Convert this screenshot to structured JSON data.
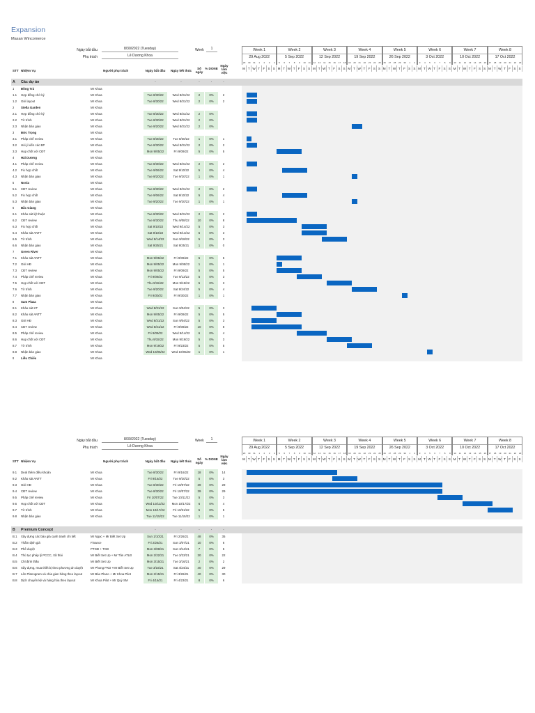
{
  "doc": {
    "title": "Expansion",
    "subtitle": "Masan Wincomerce"
  },
  "colors": {
    "bar": "#0a66c2",
    "shade": "#dcefdc",
    "header_bg": "#d9d9d9",
    "title": "#5b7fb4"
  },
  "meta": {
    "start_label": "Ngày bắt đầu",
    "start_value": "8/30/2022 (Tuesday)",
    "owner_label": "Phụ trách",
    "owner_value": "Lê Dương Khoa",
    "week_label": "Week",
    "week_value": "1"
  },
  "weeks": [
    {
      "label": "Week 1",
      "date": "29 Aug 2022"
    },
    {
      "label": "Week 2",
      "date": "5 Sep 2022"
    },
    {
      "label": "Week 3",
      "date": "12 Sep 2022"
    },
    {
      "label": "Week 4",
      "date": "19 Sep 2022"
    },
    {
      "label": "Week 5",
      "date": "26 Sep 2022"
    },
    {
      "label": "Week 6",
      "date": "3 Oct 2022"
    },
    {
      "label": "Week 7",
      "date": "10 Oct 2022"
    },
    {
      "label": "Week 8",
      "date": "17 Oct 2022"
    }
  ],
  "day_letters": [
    "M",
    "T",
    "W",
    "T",
    "F",
    "S",
    "S"
  ],
  "day_numbers": [
    "29",
    "30",
    "31",
    "1",
    "2",
    "3",
    "4",
    "5",
    "6",
    "7",
    "8",
    "9",
    "10",
    "11",
    "12",
    "13",
    "14",
    "15",
    "16",
    "17",
    "18",
    "19",
    "20",
    "21",
    "22",
    "23",
    "24",
    "25",
    "26",
    "27",
    "28",
    "29",
    "30",
    "1",
    "2",
    "3",
    "4",
    "5",
    "6",
    "7",
    "8",
    "9",
    "10",
    "11",
    "12",
    "13",
    "14",
    "15",
    "16",
    "17",
    "18",
    "19",
    "20",
    "21",
    "22",
    "23"
  ],
  "columns": {
    "stt": "STT",
    "task": "Nhiệm Vụ",
    "owner": "Người phụ trách",
    "start": "Ngày bắt đầu",
    "end": "Ngày kết thúc",
    "days": "Số ngày",
    "done": "% DONE",
    "workdays": "Ngày làm việc"
  },
  "page1_rows": [
    {
      "type": "section",
      "stt": "A",
      "task": "Các dự án",
      "start": "-",
      "end": "-",
      "days": "-",
      "done": "-",
      "workdays": "-"
    },
    {
      "type": "group",
      "stt": "1",
      "task": "Đồng Trà",
      "owner": "Mr Khoa"
    },
    {
      "type": "task",
      "stt": "1.1",
      "task": "Hợp đồng chờ ký",
      "owner": "Mr Khoa",
      "start": "Tue 8/30/22",
      "end": "Wed 8/31/22",
      "days": "2",
      "done": "0%",
      "workdays": "2",
      "bar": [
        1,
        2
      ]
    },
    {
      "type": "task",
      "stt": "1.2",
      "task": "Gửi layout",
      "owner": "Mr Khoa",
      "start": "Tue 8/30/22",
      "end": "Wed 8/31/22",
      "days": "2",
      "done": "0%",
      "workdays": "2",
      "bar": [
        1,
        2
      ]
    },
    {
      "type": "group",
      "stt": "2",
      "task": "Stella Garden",
      "owner": "Mr Khoa"
    },
    {
      "type": "task",
      "stt": "2.1",
      "task": "Hợp đồng chờ ký",
      "owner": "Mr Khoa",
      "start": "Tue 8/30/22",
      "end": "Wed 8/31/22",
      "days": "2",
      "done": "0%",
      "workdays": "",
      "bar": [
        1,
        2
      ]
    },
    {
      "type": "task",
      "stt": "2.2",
      "task": "Tờ trình",
      "owner": "Mr Khoa",
      "start": "Tue 8/30/22",
      "end": "Wed 8/31/22",
      "days": "2",
      "done": "0%",
      "workdays": "",
      "bar": [
        1,
        2
      ]
    },
    {
      "type": "task",
      "stt": "2.3",
      "task": "Nhận bàn giao",
      "owner": "Mr Khoa",
      "start": "Tue 9/20/22",
      "end": "Wed 8/31/22",
      "days": "2",
      "done": "0%",
      "workdays": "",
      "bar": [
        22,
        2
      ]
    },
    {
      "type": "group",
      "stt": "3",
      "task": "Đức Trọng",
      "owner": "Mr Khoa"
    },
    {
      "type": "task",
      "stt": "3.1",
      "task": "Pháp chế review",
      "owner": "Mr Khoa",
      "start": "Tue 8/30/22",
      "end": "Tue 8/30/22",
      "days": "1",
      "done": "0%",
      "workdays": "1",
      "bar": [
        1,
        1
      ]
    },
    {
      "type": "task",
      "stt": "3.2",
      "task": "Hỏi ý kiến các BP",
      "owner": "Mr Khoa",
      "start": "Tue 8/30/22",
      "end": "Wed 8/31/22",
      "days": "2",
      "done": "0%",
      "workdays": "2",
      "bar": [
        1,
        2
      ]
    },
    {
      "type": "task",
      "stt": "3.3",
      "task": "Họp chốt với CĐT",
      "owner": "Mr Khoa",
      "start": "Mon 9/05/22",
      "end": "Fri 9/09/22",
      "days": "5",
      "done": "0%",
      "workdays": "5",
      "bar": [
        7,
        5
      ]
    },
    {
      "type": "group",
      "stt": "4",
      "task": "Hải Dương",
      "owner": "Mr Khoa"
    },
    {
      "type": "task",
      "stt": "4.1",
      "task": "Pháp chế review",
      "owner": "Mr Khoa",
      "start": "Tue 8/30/22",
      "end": "Wed 8/31/22",
      "days": "2",
      "done": "0%",
      "workdays": "2",
      "bar": [
        1,
        2
      ]
    },
    {
      "type": "task",
      "stt": "4.2",
      "task": "Fix hợp chốt",
      "owner": "Mr Khoa",
      "start": "Tue 9/06/22",
      "end": "Sat 9/10/22",
      "days": "5",
      "done": "0%",
      "workdays": "4",
      "bar": [
        8,
        5
      ]
    },
    {
      "type": "task",
      "stt": "4.3",
      "task": "Nhận bàn giao",
      "owner": "Mr Khoa",
      "start": "Tue 9/20/22",
      "end": "Tue 9/20/22",
      "days": "1",
      "done": "0%",
      "workdays": "1",
      "bar": [
        22,
        1
      ]
    },
    {
      "type": "group",
      "stt": "5",
      "task": "Novia",
      "owner": "Mr Khoa"
    },
    {
      "type": "task",
      "stt": "5.1",
      "task": "CĐT review",
      "owner": "Mr Khoa",
      "start": "Tue 8/30/22",
      "end": "Wed 8/31/22",
      "days": "2",
      "done": "0%",
      "workdays": "2",
      "bar": [
        1,
        2
      ]
    },
    {
      "type": "task",
      "stt": "5.2",
      "task": "Fix hợp chốt",
      "owner": "Mr Khoa",
      "start": "Tue 9/06/22",
      "end": "Sat 9/10/22",
      "days": "5",
      "done": "0%",
      "workdays": "4",
      "bar": [
        8,
        5
      ]
    },
    {
      "type": "task",
      "stt": "5.3",
      "task": "Nhận bàn giao",
      "owner": "Mr Khoa",
      "start": "Tue 9/20/22",
      "end": "Tue 9/20/22",
      "days": "1",
      "done": "0%",
      "workdays": "1",
      "bar": [
        22,
        1
      ]
    },
    {
      "type": "group",
      "stt": "6",
      "task": "Bắc Giang",
      "owner": "Mr Khoa"
    },
    {
      "type": "task",
      "stt": "6.1",
      "task": "Khảo sát kỹ thuật",
      "owner": "Mr Khoa",
      "start": "Tue 8/30/22",
      "end": "Wed 8/31/22",
      "days": "2",
      "done": "0%",
      "workdays": "2",
      "bar": [
        1,
        2
      ]
    },
    {
      "type": "task",
      "stt": "6.2",
      "task": "CĐT review",
      "owner": "Mr Khoa",
      "start": "Tue 8/30/22",
      "end": "Thu 9/08/22",
      "days": "10",
      "done": "0%",
      "workdays": "8",
      "bar": [
        1,
        10
      ]
    },
    {
      "type": "task",
      "stt": "6.3",
      "task": "Fix hợp chốt",
      "owner": "Mr Khoa",
      "start": "Sat 9/10/22",
      "end": "Wed 9/14/22",
      "days": "5",
      "done": "0%",
      "workdays": "3",
      "bar": [
        12,
        5
      ]
    },
    {
      "type": "task",
      "stt": "6.4",
      "task": "Khảo sát ANTT",
      "owner": "Mr Khoa",
      "start": "Sat 9/10/22",
      "end": "Wed 9/14/22",
      "days": "5",
      "done": "0%",
      "workdays": "3",
      "bar": [
        12,
        5
      ]
    },
    {
      "type": "task",
      "stt": "6.5",
      "task": "Tờ trình",
      "owner": "Mr Khoa",
      "start": "Wed 9/14/22",
      "end": "Sun 9/18/22",
      "days": "5",
      "done": "0%",
      "workdays": "3",
      "bar": [
        16,
        5
      ]
    },
    {
      "type": "task",
      "stt": "6.6",
      "task": "Nhận bàn giao",
      "owner": "Mr Khoa",
      "start": "Sat 9/25/21",
      "end": "Sat 9/25/21",
      "days": "1",
      "done": "0%",
      "workdays": "0"
    },
    {
      "type": "group",
      "stt": "7",
      "task": "Green River",
      "owner": "Mr Khoa"
    },
    {
      "type": "task",
      "stt": "7.1",
      "task": "Khảo sát ANTT",
      "owner": "Mr Khoa",
      "start": "Mon 9/05/22",
      "end": "Fri 9/09/22",
      "days": "5",
      "done": "0%",
      "workdays": "5",
      "bar": [
        7,
        5
      ]
    },
    {
      "type": "task",
      "stt": "7.2",
      "task": "Gửi HĐ",
      "owner": "Mr Khoa",
      "start": "Mon 9/05/22",
      "end": "Mon 9/05/22",
      "days": "1",
      "done": "0%",
      "workdays": "1",
      "bar": [
        7,
        1
      ]
    },
    {
      "type": "task",
      "stt": "7.3",
      "task": "CĐT review",
      "owner": "Mr Khoa",
      "start": "Mon 9/05/22",
      "end": "Fri 9/09/22",
      "days": "5",
      "done": "0%",
      "workdays": "5",
      "bar": [
        7,
        5
      ]
    },
    {
      "type": "task",
      "stt": "7.4",
      "task": "Pháp chế review",
      "owner": "Mr Khoa",
      "start": "Fri 9/09/22",
      "end": "Tue 9/13/22",
      "days": "5",
      "done": "0%",
      "workdays": "3",
      "bar": [
        11,
        5
      ]
    },
    {
      "type": "task",
      "stt": "7.5",
      "task": "Họp chốt với CĐT",
      "owner": "Mr Khoa",
      "start": "Thu 9/15/22",
      "end": "Mon 9/19/22",
      "days": "5",
      "done": "0%",
      "workdays": "3",
      "bar": [
        17,
        5
      ]
    },
    {
      "type": "task",
      "stt": "7.6",
      "task": "Tờ trình",
      "owner": "Mr Khoa",
      "start": "Tue 9/20/22",
      "end": "Sat 9/24/22",
      "days": "5",
      "done": "0%",
      "workdays": "4",
      "bar": [
        22,
        5
      ]
    },
    {
      "type": "task",
      "stt": "7.7",
      "task": "Nhận bàn giao",
      "owner": "Mr Khoa",
      "start": "Fri 9/30/22",
      "end": "Fri 9/30/22",
      "days": "1",
      "done": "0%",
      "workdays": "1",
      "bar": [
        32,
        1
      ]
    },
    {
      "type": "group",
      "stt": "8",
      "task": "Sam Plaza",
      "owner": "Mr Khoa"
    },
    {
      "type": "task",
      "stt": "8.1",
      "task": "Khảo sát KT",
      "owner": "Mr Khoa",
      "start": "Wed 8/31/22",
      "end": "Sun 9/04/22",
      "days": "5",
      "done": "0%",
      "workdays": "3",
      "bar": [
        2,
        5
      ]
    },
    {
      "type": "task",
      "stt": "8.2",
      "task": "Khảo sát ANTT",
      "owner": "Mr Khoa",
      "start": "Mon 9/05/22",
      "end": "Fri 9/09/22",
      "days": "5",
      "done": "0%",
      "workdays": "5",
      "bar": [
        7,
        5
      ]
    },
    {
      "type": "task",
      "stt": "8.3",
      "task": "Gửi HĐ",
      "owner": "Mr Khoa",
      "start": "Wed 8/31/22",
      "end": "Sun 9/04/22",
      "days": "5",
      "done": "0%",
      "workdays": "3",
      "bar": [
        2,
        5
      ]
    },
    {
      "type": "task",
      "stt": "8.4",
      "task": "CĐT review",
      "owner": "Mr Khoa",
      "start": "Wed 8/31/22",
      "end": "Fri 9/09/22",
      "days": "10",
      "done": "0%",
      "workdays": "8",
      "bar": [
        2,
        10
      ]
    },
    {
      "type": "task",
      "stt": "8.5",
      "task": "Pháp chế review",
      "owner": "Mr Khoa",
      "start": "Fri 9/09/22",
      "end": "Wed 9/14/22",
      "days": "6",
      "done": "0%",
      "workdays": "4",
      "bar": [
        11,
        6
      ]
    },
    {
      "type": "task",
      "stt": "8.6",
      "task": "Họp chốt với CĐT",
      "owner": "Mr Khoa",
      "start": "Thu 9/15/22",
      "end": "Mon 9/19/22",
      "days": "5",
      "done": "0%",
      "workdays": "3",
      "bar": [
        17,
        5
      ]
    },
    {
      "type": "task",
      "stt": "8.7",
      "task": "Tờ trình",
      "owner": "Mr Khoa",
      "start": "Mon 9/19/22",
      "end": "Fri 9/23/22",
      "days": "5",
      "done": "0%",
      "workdays": "5",
      "bar": [
        21,
        5
      ]
    },
    {
      "type": "task",
      "stt": "8.8",
      "task": "Nhận bàn giao",
      "owner": "Mr Khoa",
      "start": "Wed 10/05/22",
      "end": "Wed 10/05/22",
      "days": "1",
      "done": "0%",
      "workdays": "1",
      "bar": [
        37,
        1
      ]
    },
    {
      "type": "group",
      "stt": "9",
      "task": "Liễu Chiểu",
      "owner": "Mr Khoa"
    }
  ],
  "page2_rows": [
    {
      "type": "task",
      "stt": "9.1",
      "task": "Deal thêm điều khoản",
      "owner": "Mr Khoa",
      "start": "Tue 8/30/22",
      "end": "Fri 9/16/22",
      "days": "18",
      "done": "0%",
      "workdays": "14",
      "bar": [
        1,
        18
      ]
    },
    {
      "type": "task",
      "stt": "9.2",
      "task": "Khảo sát ANTT",
      "owner": "Mr Khoa",
      "start": "Fri 9/16/22",
      "end": "Tue 9/20/22",
      "days": "5",
      "done": "0%",
      "workdays": "3",
      "bar": [
        18,
        5
      ]
    },
    {
      "type": "task",
      "stt": "9.3",
      "task": "Gửi HĐ",
      "owner": "Mr Khoa",
      "start": "Tue 8/30/22",
      "end": "Fri 10/07/22",
      "days": "39",
      "done": "0%",
      "workdays": "29",
      "bar": [
        1,
        39
      ]
    },
    {
      "type": "task",
      "stt": "9.4",
      "task": "CĐT review",
      "owner": "Mr Khoa",
      "start": "Tue 8/30/22",
      "end": "Fri 10/07/22",
      "days": "39",
      "done": "0%",
      "workdays": "29",
      "bar": [
        1,
        39
      ]
    },
    {
      "type": "task",
      "stt": "9.5",
      "task": "Pháp chế review",
      "owner": "Mr Khoa",
      "start": "Fri 10/07/22",
      "end": "Tue 10/11/22",
      "days": "5",
      "done": "0%",
      "workdays": "3",
      "bar": [
        39,
        5
      ]
    },
    {
      "type": "task",
      "stt": "9.6",
      "task": "Họp chốt với CĐT",
      "owner": "Mr Khoa",
      "start": "Wed 10/12/22",
      "end": "Mon 10/17/22",
      "days": "6",
      "done": "0%",
      "workdays": "4",
      "bar": [
        44,
        6
      ]
    },
    {
      "type": "task",
      "stt": "9.7",
      "task": "Tờ trình",
      "owner": "Mr Khoa",
      "start": "Mon 10/17/22",
      "end": "Fri 10/21/22",
      "days": "5",
      "done": "0%",
      "workdays": "5",
      "bar": [
        49,
        5
      ]
    },
    {
      "type": "task",
      "stt": "9.8",
      "task": "Nhận bàn giao",
      "owner": "Mr Khoa",
      "start": "Tue 11/15/22",
      "end": "Tue 11/15/22",
      "days": "1",
      "done": "0%",
      "workdays": "1"
    },
    {
      "type": "spacer"
    },
    {
      "type": "section",
      "stt": "B",
      "task": "Premium Concept",
      "start": "-",
      "end": "-",
      "days": "-",
      "done": "-",
      "workdays": "-"
    },
    {
      "type": "task",
      "stt": "B.1",
      "task": "Xây dựng các báo giá cạnh tranh chi tiết",
      "owner": "Mr Ngọc + Mr Biết Set Up",
      "start": "Sun 1/10/21",
      "end": "Fri 2/26/21",
      "days": "48",
      "done": "0%",
      "workdays": "35"
    },
    {
      "type": "task",
      "stt": "B.2",
      "task": "Thẩm định giá",
      "owner": "Finance",
      "start": "Fri 2/26/21",
      "end": "Sun 3/07/21",
      "days": "10",
      "done": "0%",
      "workdays": "6"
    },
    {
      "type": "task",
      "stt": "B.3",
      "task": "Phê duyệt",
      "owner": "PTGĐ + TGĐ",
      "start": "Mon 3/08/21",
      "end": "Sun 3/14/21",
      "days": "7",
      "done": "0%",
      "workdays": "5"
    },
    {
      "type": "task",
      "stt": "B.4",
      "task": "Thủ tục pháp lý PCCC, Xã thải",
      "owner": "Mr Biết Set Up + Mr Tân ATLĐ",
      "start": "Mon 2/22/21",
      "end": "Tue 3/23/21",
      "days": "30",
      "done": "0%",
      "workdays": "22"
    },
    {
      "type": "task",
      "stt": "B.5",
      "task": "Chỉ định thầu",
      "owner": "Mr Biết Set Up",
      "start": "Mon 3/15/21",
      "end": "Tue 3/16/21",
      "days": "2",
      "done": "0%",
      "workdays": "2"
    },
    {
      "type": "task",
      "stt": "B.6",
      "task": "Xây dựng, mua thiết bị theo phương án duyệt",
      "owner": "Mr Phong PXD +Mr Biết Set Up",
      "start": "Tue 3/16/21",
      "end": "Sat 4/24/21",
      "days": "40",
      "done": "0%",
      "workdays": "29"
    },
    {
      "type": "task",
      "stt": "B.7",
      "task": "Lên Planogram và chia gian hàng theo layout",
      "owner": "Mr Bảo Plano + Mr Khoa Pilot",
      "start": "Mon 2/15/21",
      "end": "Fri 3/26/21",
      "days": "40",
      "done": "0%",
      "workdays": "30"
    },
    {
      "type": "task",
      "stt": "B.8",
      "task": "Dịch chuyển kệ và hàng hóa theo layout",
      "owner": "Mr Khoa Pilot + Mr Quý SM",
      "start": "Fri 4/16/21",
      "end": "Fri 4/23/21",
      "days": "8",
      "done": "0%",
      "workdays": "6"
    }
  ]
}
